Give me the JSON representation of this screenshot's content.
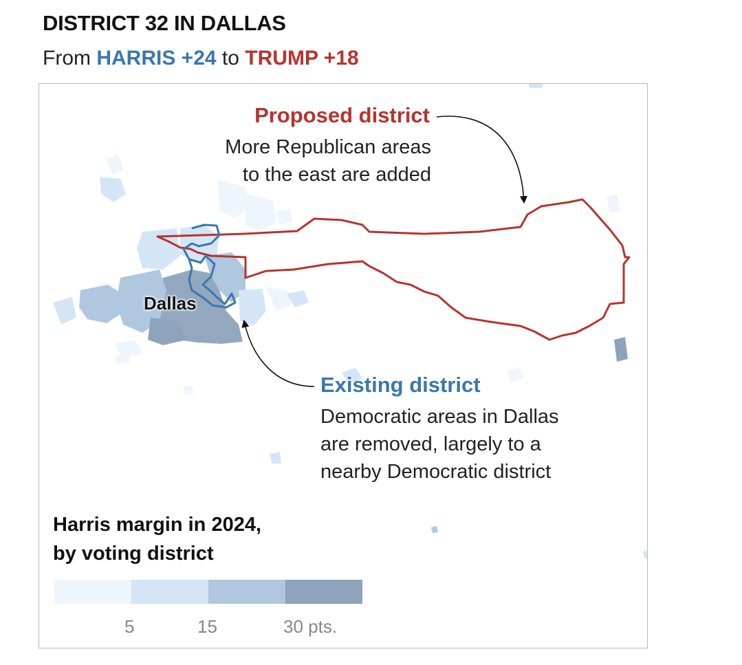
{
  "header": {
    "title": "DISTRICT 32 IN DALLAS",
    "subtitle_from": "From",
    "subtitle_harris": "HARRIS +24",
    "subtitle_to": "to",
    "subtitle_trump": "TRUMP +18"
  },
  "map": {
    "city_label": "Dallas",
    "proposed": {
      "title": "Proposed district",
      "desc_line1": "More Republican areas",
      "desc_line2": "to the east are added",
      "color": "#b7332d"
    },
    "existing": {
      "title": "Existing district",
      "desc_line1": "Democratic areas in Dallas",
      "desc_line2": "are removed, largely to a",
      "desc_line3": "nearby Democratic district",
      "color": "#3a77ad"
    }
  },
  "legend": {
    "title_line1": "Harris margin in 2024,",
    "title_line2": "by voting district",
    "swatches": [
      "#eef5fc",
      "#d4e6f6",
      "#afc7df",
      "#8da3bc"
    ],
    "ticks": [
      "5",
      "15",
      "30 pts."
    ]
  }
}
